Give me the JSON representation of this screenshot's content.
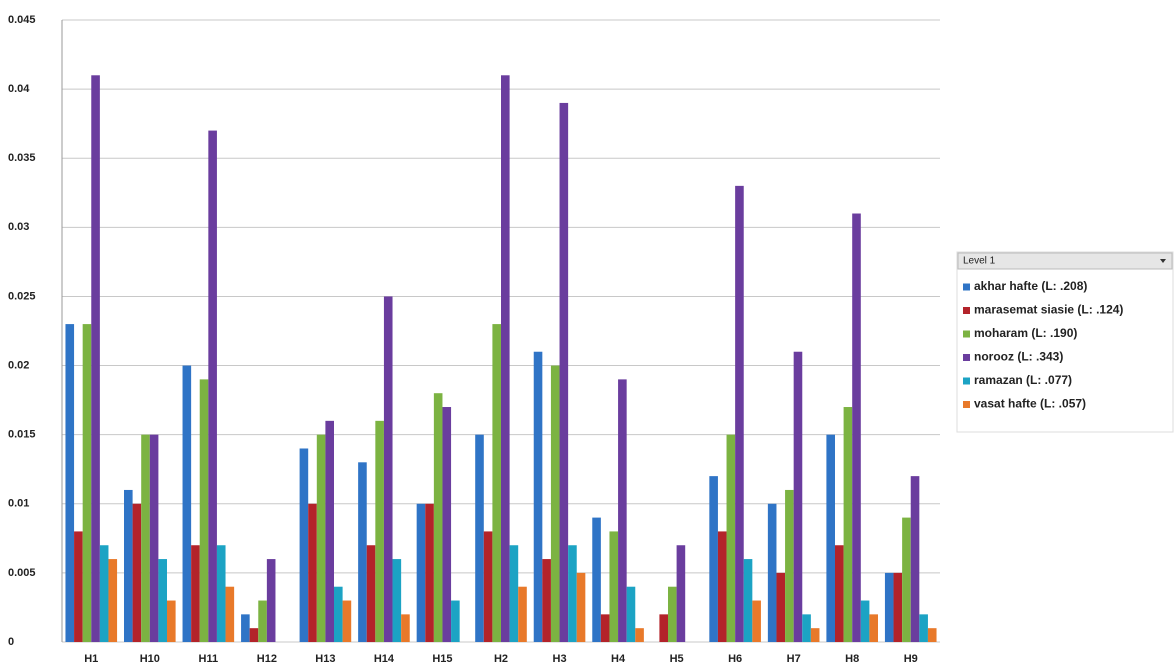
{
  "chart_data": {
    "type": "bar",
    "legend_title": "Level 1",
    "categories": [
      "H1",
      "H10",
      "H11",
      "H12",
      "H13",
      "H14",
      "H15",
      "H2",
      "H3",
      "H4",
      "H5",
      "H6",
      "H7",
      "H8",
      "H9"
    ],
    "series": [
      {
        "name": "akhar hafte (L: .208)",
        "color": "#2f74c6",
        "values": [
          0.023,
          0.011,
          0.02,
          0.002,
          0.014,
          0.013,
          0.01,
          0.015,
          0.021,
          0.009,
          0,
          0.012,
          0.01,
          0.015,
          0.005
        ]
      },
      {
        "name": "marasemat siasie (L: .124)",
        "color": "#b3232a",
        "values": [
          0.008,
          0.01,
          0.007,
          0.001,
          0.01,
          0.007,
          0.01,
          0.008,
          0.006,
          0.002,
          0.002,
          0.008,
          0.005,
          0.007,
          0.005
        ]
      },
      {
        "name": "moharam (L: .190)",
        "color": "#7cb342",
        "values": [
          0.023,
          0.015,
          0.019,
          0.003,
          0.015,
          0.016,
          0.018,
          0.023,
          0.02,
          0.008,
          0.004,
          0.015,
          0.011,
          0.017,
          0.009
        ]
      },
      {
        "name": "norooz (L: .343)",
        "color": "#6a3d9e",
        "values": [
          0.041,
          0.015,
          0.037,
          0.006,
          0.016,
          0.025,
          0.017,
          0.041,
          0.039,
          0.019,
          0.007,
          0.033,
          0.021,
          0.031,
          0.012
        ]
      },
      {
        "name": "ramazan (L: .077)",
        "color": "#1ca3c4",
        "values": [
          0.007,
          0.006,
          0.007,
          0,
          0.004,
          0.006,
          0.003,
          0.007,
          0.007,
          0.004,
          0,
          0.006,
          0.002,
          0.003,
          0.002
        ]
      },
      {
        "name": "vasat hafte (L: .057)",
        "color": "#e8792a",
        "values": [
          0.006,
          0.003,
          0.004,
          0,
          0.003,
          0.002,
          0,
          0.004,
          0.005,
          0.001,
          0,
          0.003,
          0.001,
          0.002,
          0.001
        ]
      }
    ],
    "ylim": [
      0,
      0.045
    ],
    "yticks": [
      0,
      0.005,
      0.01,
      0.015,
      0.02,
      0.025,
      0.03,
      0.035,
      0.04,
      0.045
    ],
    "grid": true,
    "legend": "right"
  }
}
